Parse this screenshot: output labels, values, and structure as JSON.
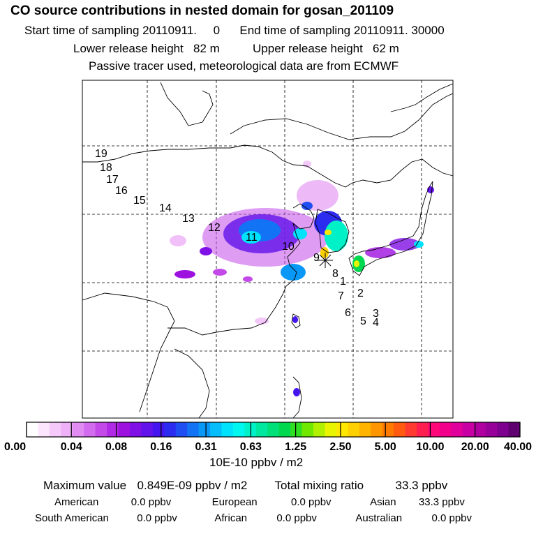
{
  "header": {
    "title": "CO  source contributions in nested domain for gosan_201109",
    "sampling": "Start time of sampling 20110911.     0      End time of sampling 20110911. 30000",
    "release": "Lower release height   82 m          Upper release height   62 m",
    "note": "Passive tracer used, meteorological data are from ECMWF"
  },
  "map": {
    "receptor_marker": "asterisk-icon",
    "trajectory_labels": [
      "1",
      "2",
      "3",
      "4",
      "5",
      "6",
      "7",
      "8",
      "9",
      "10",
      "11",
      "12",
      "13",
      "14",
      "15",
      "16",
      "17",
      "18",
      "19"
    ]
  },
  "colorbar": {
    "tick_labels": [
      "0.00",
      "0.04",
      "0.08",
      "0.16",
      "0.31",
      "0.63",
      "1.25",
      "2.50",
      "5.00",
      "10.00",
      "20.00",
      "40.00"
    ],
    "unit": "10E-10 ppbv / m2",
    "colors": [
      "#ffffff",
      "#fce6fd",
      "#f5c9fa",
      "#eeb0f7",
      "#e18cf2",
      "#d36bee",
      "#c34ae9",
      "#b12ae5",
      "#9e12e0",
      "#7f10e6",
      "#6212ea",
      "#4415ee",
      "#2c2cf0",
      "#1f4ff3",
      "#1274f5",
      "#0a98f7",
      "#05bdfa",
      "#00e2fc",
      "#00f7ef",
      "#00f0c8",
      "#00e8a0",
      "#00e078",
      "#00d850",
      "#30e020",
      "#70e800",
      "#b0f000",
      "#e8f400",
      "#ffe800",
      "#ffd000",
      "#ffb400",
      "#ff9600",
      "#ff7a00",
      "#ff5a10",
      "#ff3a30",
      "#ff1e50",
      "#ff0878",
      "#f2008c",
      "#e0009c",
      "#c800a4",
      "#b000a0",
      "#98009a",
      "#7e008e",
      "#600070"
    ]
  },
  "summary": {
    "max_label": "Maximum value",
    "max_value": "0.849E-09 ppbv / m2",
    "total_label": "Total mixing ratio",
    "total_value": "33.3 ppbv",
    "american_label": "American",
    "american_value": "0.0 ppbv",
    "european_label": "European",
    "european_value": "0.0 ppbv",
    "asian_label": "Asian",
    "asian_value": "33.3 ppbv",
    "south_american_label": "South American",
    "south_american_value": "0.0 ppbv",
    "african_label": "African",
    "african_value": "0.0 ppbv",
    "australian_label": "Australian",
    "australian_value": "0.0 ppbv"
  }
}
